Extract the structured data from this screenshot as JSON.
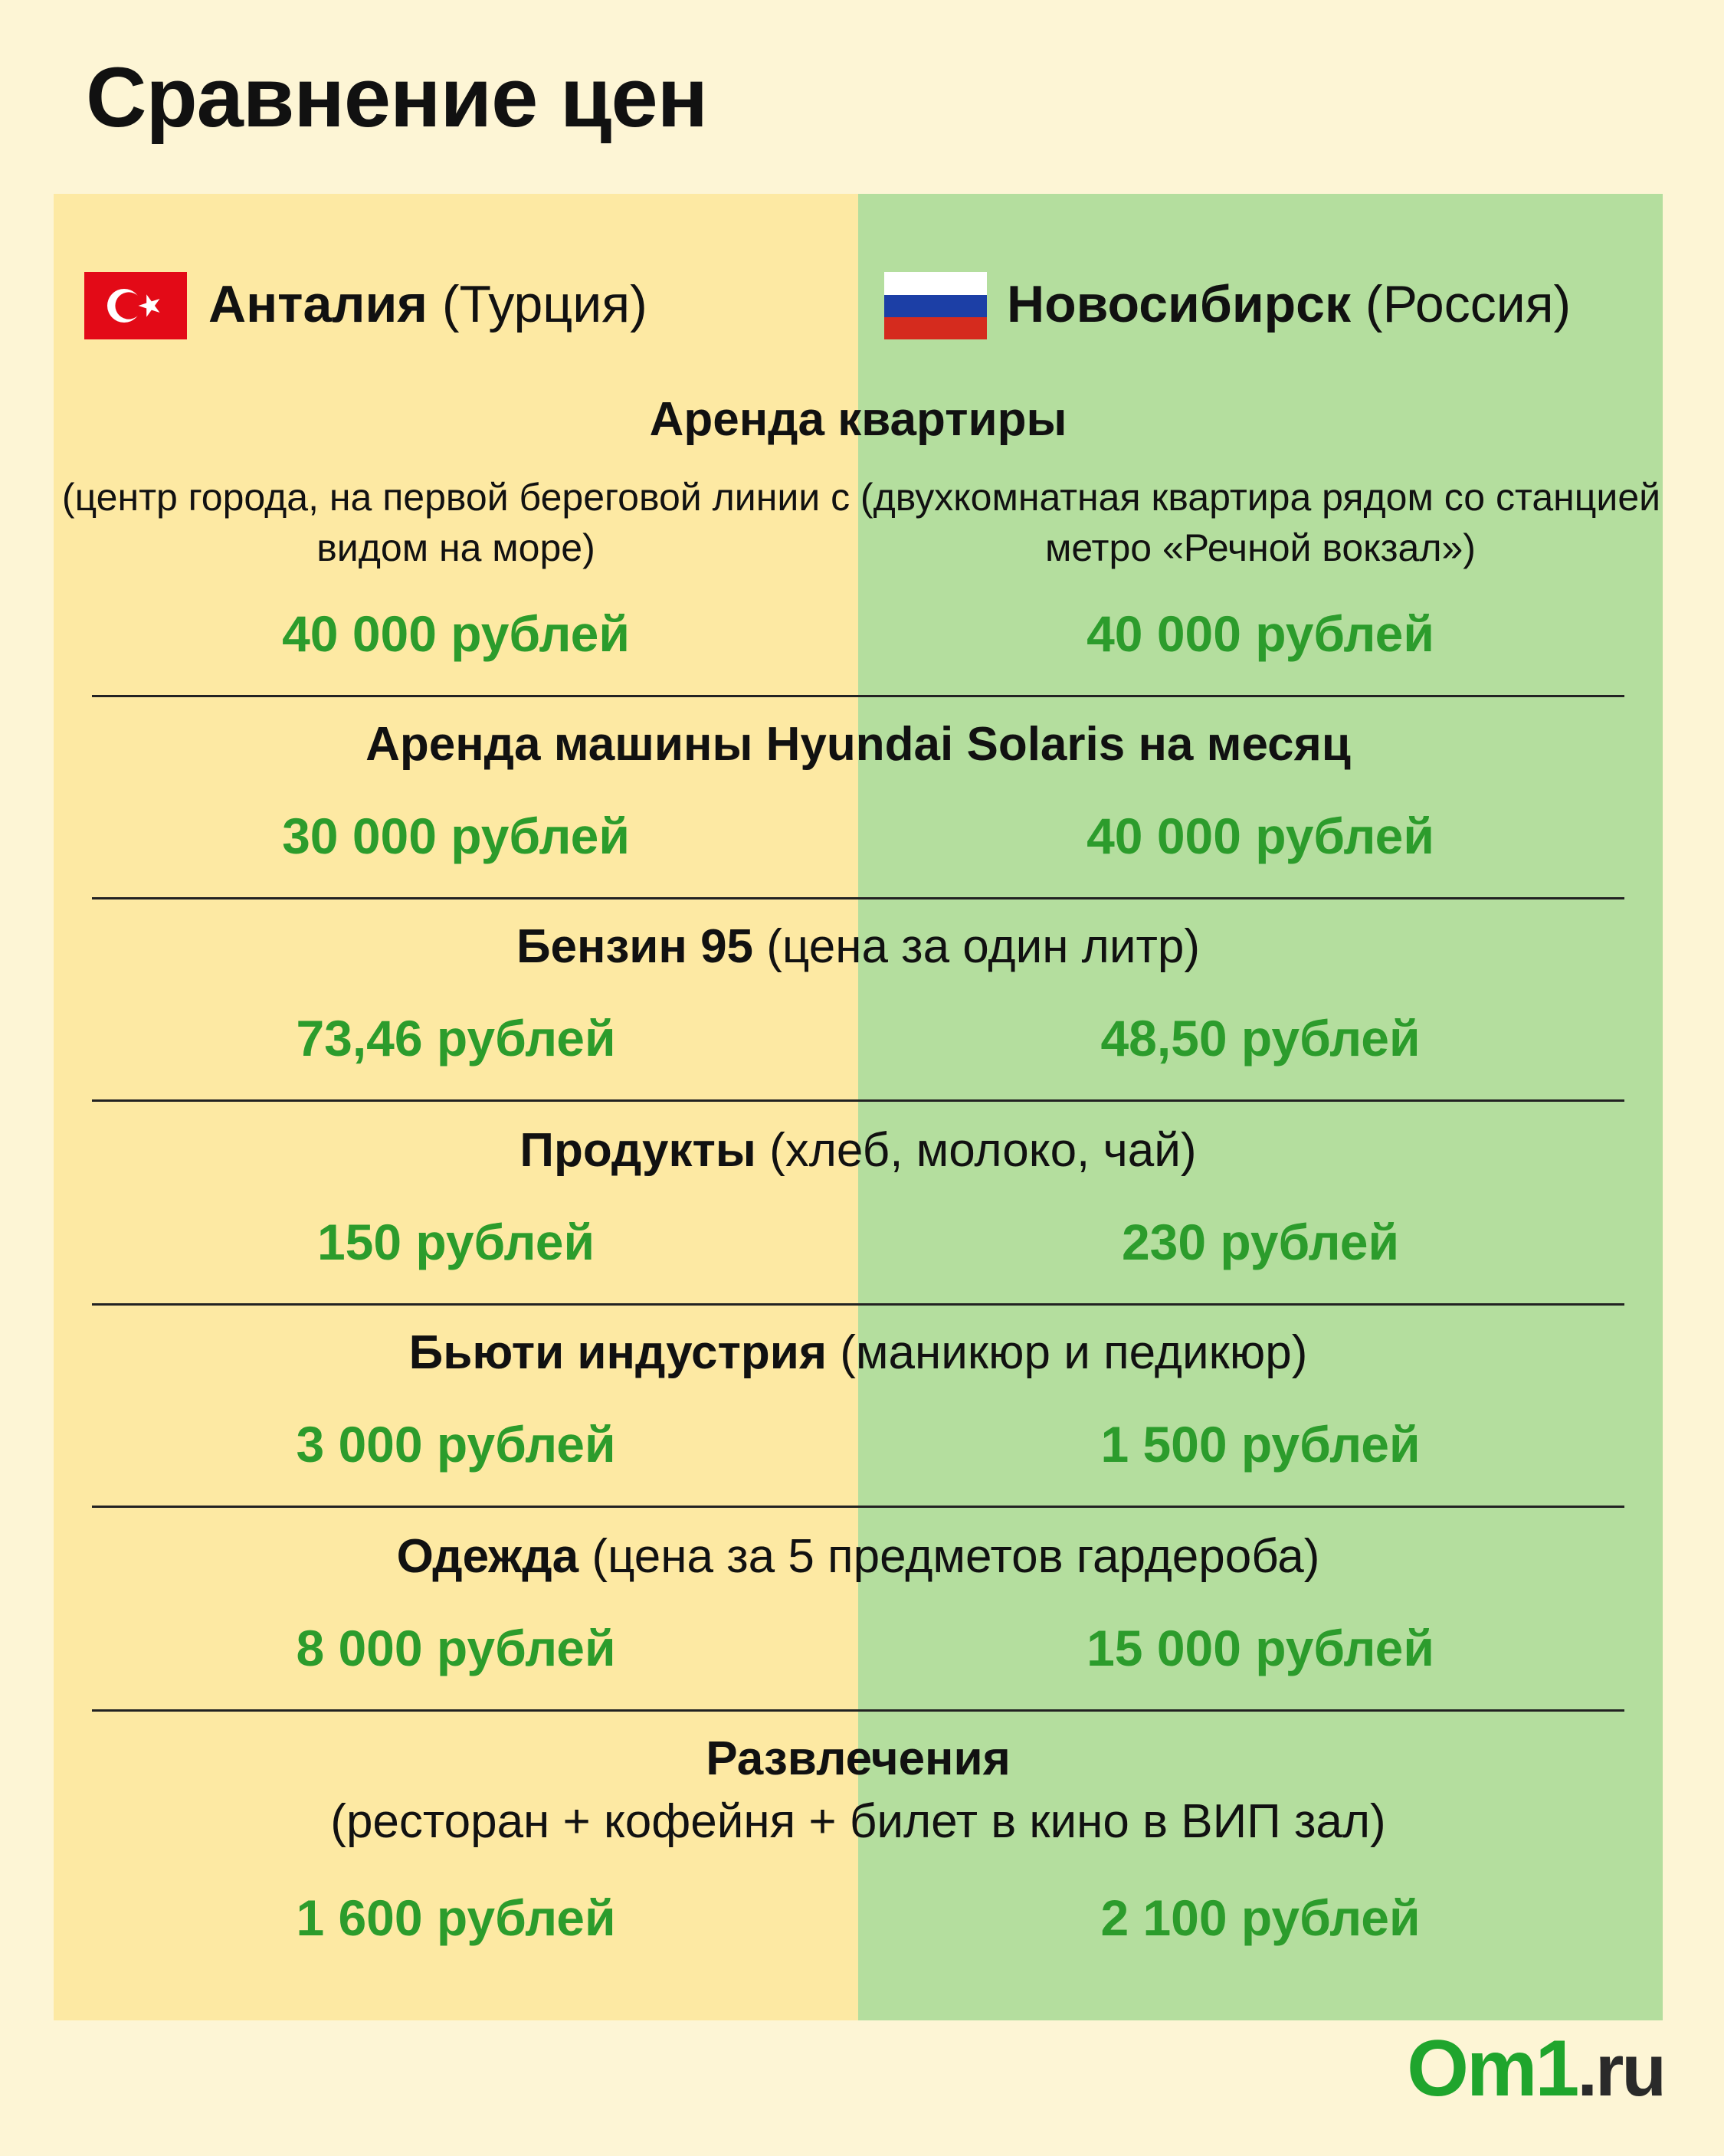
{
  "title": "Сравнение цен",
  "columns": {
    "left": {
      "city": "Анталия",
      "country": "(Турция)",
      "flag": "turkey-flag-icon"
    },
    "right": {
      "city": "Новосибирск",
      "country": "(Россия)",
      "flag": "russia-flag-icon"
    }
  },
  "categories": [
    {
      "name": "Аренда квартиры",
      "note": "",
      "left_desc": "(центр города, на первой береговой линии с видом на море)",
      "right_desc": "(двухкомнатная квартира рядом со станцией метро «Речной вокзал»)",
      "left_price": "40 000 рублей",
      "right_price": "40 000 рублей"
    },
    {
      "name": "Аренда машины Hyundai Solaris на месяц",
      "note": "",
      "left_price": "30 000 рублей",
      "right_price": "40 000 рублей"
    },
    {
      "name": "Бензин 95",
      "note": "(цена за один литр)",
      "left_price": "73,46 рублей",
      "right_price": "48,50 рублей"
    },
    {
      "name": "Продукты",
      "note": "(хлеб, молоко, чай)",
      "left_price": "150 рублей",
      "right_price": "230 рублей"
    },
    {
      "name": "Бьюти индустрия",
      "note": "(маникюр и педикюр)",
      "left_price": "3 000 рублей",
      "right_price": "1 500 рублей"
    },
    {
      "name": "Одежда",
      "note": "(цена за 5 предметов гардероба)",
      "left_price": "8 000 рублей",
      "right_price": "15 000 рублей"
    },
    {
      "name": "Развлечения",
      "note": "(ресторан + кофейня + билет в кино в ВИП зал)",
      "left_price": "1 600 рублей",
      "right_price": "2 100 рублей"
    }
  ],
  "colors": {
    "background": "#fdf5d5",
    "left_column": "#fde9a3",
    "right_column": "#b4de9e",
    "price": "#2c9c2c",
    "logo_green": "#1fa52d"
  },
  "logo": {
    "main": "Om1",
    "tld": ".ru"
  }
}
